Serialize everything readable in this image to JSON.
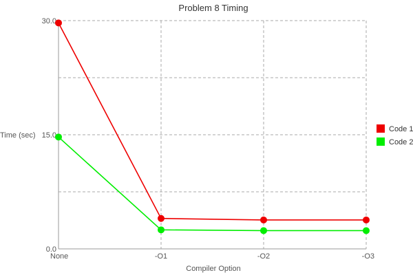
{
  "chart_data": {
    "type": "line",
    "title": "Problem 8 Timing",
    "xlabel": "Compiler Option",
    "ylabel": "Time (sec)",
    "categories": [
      "None",
      "-O1",
      "-O2",
      "-O3"
    ],
    "ylim": [
      0,
      30
    ],
    "yticks": [
      0,
      15,
      30
    ],
    "ytick_labels": [
      "0.0",
      "15.0",
      "30.0"
    ],
    "grid": true,
    "legend_position": "right",
    "series": [
      {
        "name": "Code 1",
        "color": "#ee0000",
        "values": [
          29.7,
          4.0,
          3.8,
          3.8
        ]
      },
      {
        "name": "Code 2",
        "color": "#00ee00",
        "values": [
          14.7,
          2.5,
          2.4,
          2.4
        ]
      }
    ]
  }
}
